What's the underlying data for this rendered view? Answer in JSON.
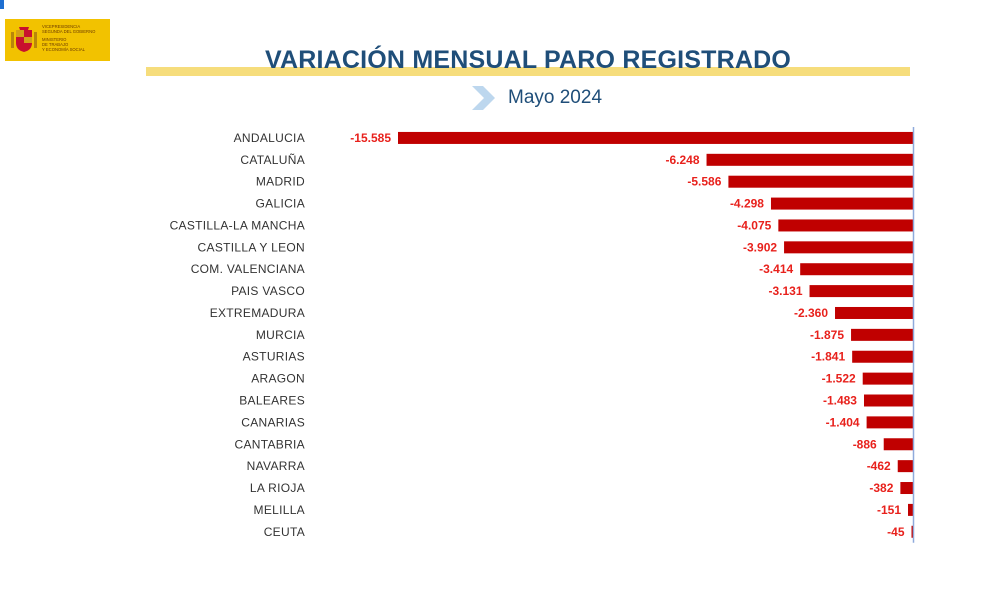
{
  "logo": {
    "lines": [
      "VICEPRESIDENCIA",
      "SEGUNDA DEL GOBIERNO",
      "",
      "MINISTERIO",
      "DE TRABAJO",
      "Y ECONOMÍA SOCIAL"
    ],
    "icon": "spain-coat-of-arms-icon"
  },
  "header": {
    "title": "VARIACIÓN MENSUAL PARO REGISTRADO",
    "subtitle": "Mayo 2024",
    "subtitle_icon": "chevron-right-icon"
  },
  "colors": {
    "bar": "#c00000",
    "value_label": "#e8211c",
    "title": "#1f4e79",
    "title_band": "#f6dd7c",
    "axis": "#8faadc"
  },
  "chart_data": {
    "type": "bar",
    "orientation": "horizontal",
    "title": "VARIACIÓN MENSUAL PARO REGISTRADO",
    "subtitle": "Mayo 2024",
    "categories": [
      "ANDALUCIA",
      "CATALUÑA",
      "MADRID",
      "GALICIA",
      "CASTILLA-LA MANCHA",
      "CASTILLA Y LEON",
      "COM. VALENCIANA",
      "PAIS VASCO",
      "EXTREMADURA",
      "MURCIA",
      "ASTURIAS",
      "ARAGON",
      "BALEARES",
      "CANARIAS",
      "CANTABRIA",
      "NAVARRA",
      "LA RIOJA",
      "MELILLA",
      "CEUTA"
    ],
    "values": [
      -15585,
      -6248,
      -5586,
      -4298,
      -4075,
      -3902,
      -3414,
      -3131,
      -2360,
      -1875,
      -1841,
      -1522,
      -1483,
      -1404,
      -886,
      -462,
      -382,
      -151,
      -45
    ],
    "value_labels": [
      "-15.585",
      "-6.248",
      "-5.586",
      "-4.298",
      "-4.075",
      "-3.902",
      "-3.414",
      "-3.131",
      "-2.360",
      "-1.875",
      "-1.841",
      "-1.522",
      "-1.483",
      "-1.404",
      "-886",
      "-462",
      "-382",
      "-151",
      "-45"
    ],
    "xlim": [
      -15585,
      0
    ],
    "grid": false,
    "legend": "none"
  }
}
